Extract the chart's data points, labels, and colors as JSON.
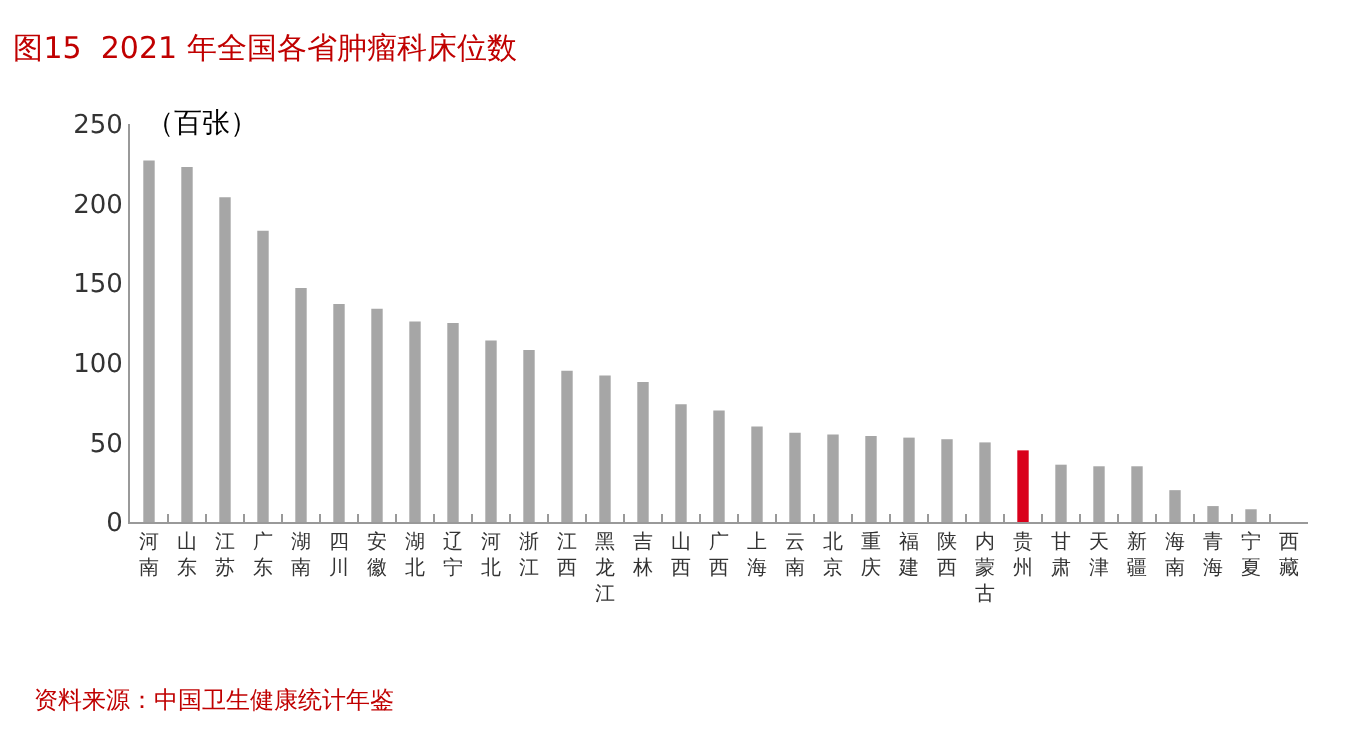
{
  "chart_data": {
    "type": "bar",
    "title": "图15  2021 年全国各省肿瘤科床位数",
    "ylabel": "（百张）",
    "categories": [
      "河南",
      "山东",
      "江苏",
      "广东",
      "湖南",
      "四川",
      "安徽",
      "湖北",
      "辽宁",
      "河北",
      "浙江",
      "江西",
      "黑龙江",
      "吉林",
      "山西",
      "广西",
      "上海",
      "云南",
      "北京",
      "重庆",
      "福建",
      "陕西",
      "内蒙古",
      "贵州",
      "甘肃",
      "天津",
      "新疆",
      "海南",
      "青海",
      "宁夏",
      "西藏"
    ],
    "values": [
      227,
      223,
      204,
      183,
      147,
      137,
      134,
      126,
      125,
      114,
      108,
      95,
      92,
      88,
      74,
      70,
      60,
      56,
      55,
      54,
      53,
      52,
      50,
      45,
      36,
      35,
      35,
      20,
      10,
      8,
      0
    ],
    "colors": [
      "#a6a6a6",
      "#a6a6a6",
      "#a6a6a6",
      "#a6a6a6",
      "#a6a6a6",
      "#a6a6a6",
      "#a6a6a6",
      "#a6a6a6",
      "#a6a6a6",
      "#a6a6a6",
      "#a6a6a6",
      "#a6a6a6",
      "#a6a6a6",
      "#a6a6a6",
      "#a6a6a6",
      "#a6a6a6",
      "#a6a6a6",
      "#a6a6a6",
      "#a6a6a6",
      "#a6a6a6",
      "#a6a6a6",
      "#a6a6a6",
      "#a6a6a6",
      "#d9001b",
      "#a6a6a6",
      "#a6a6a6",
      "#a6a6a6",
      "#a6a6a6",
      "#a6a6a6",
      "#a6a6a6",
      "#a6a6a6"
    ],
    "ylim": [
      0,
      250
    ],
    "yticks": [
      0,
      50,
      100,
      150,
      200,
      250
    ],
    "grid": false,
    "legend": false,
    "annotations": [
      "资料来源：中国卫生健康统计年鉴"
    ]
  }
}
